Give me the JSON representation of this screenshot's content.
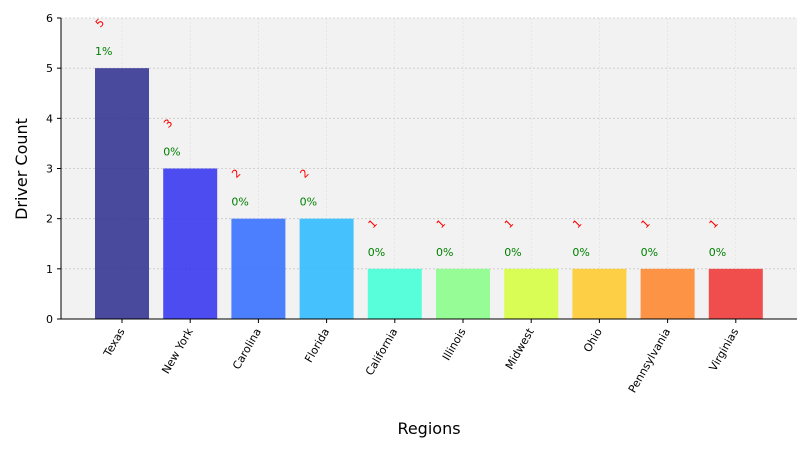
{
  "chart_data": {
    "type": "bar",
    "categories": [
      "Texas",
      "New York",
      "Carolina",
      "Florida",
      "California",
      "Illinois",
      "Midwest",
      "Ohio",
      "Pennsylvania",
      "Virginias"
    ],
    "values": [
      5,
      3,
      2,
      2,
      1,
      1,
      1,
      1,
      1,
      1
    ],
    "count_labels": [
      "5",
      "3",
      "2",
      "2",
      "1",
      "1",
      "1",
      "1",
      "1",
      "1"
    ],
    "percent_labels": [
      "1%",
      "0%",
      "0%",
      "0%",
      "0%",
      "0%",
      "0%",
      "0%",
      "0%",
      "0%"
    ],
    "colors": [
      "#2b2b8f",
      "#2f2ff0",
      "#2f6bff",
      "#27b8ff",
      "#3dffd6",
      "#86ff86",
      "#d6ff3a",
      "#ffc926",
      "#ff8326",
      "#f03030"
    ],
    "xlabel": "Regions",
    "ylabel": "Driver Count",
    "ylim": [
      0,
      6
    ],
    "yticks": [
      "0",
      "1",
      "2",
      "3",
      "4",
      "5",
      "6"
    ],
    "grid": true,
    "background": "#f2f2f2",
    "count_label_color": "#ff0000",
    "percent_label_color": "#008000"
  }
}
